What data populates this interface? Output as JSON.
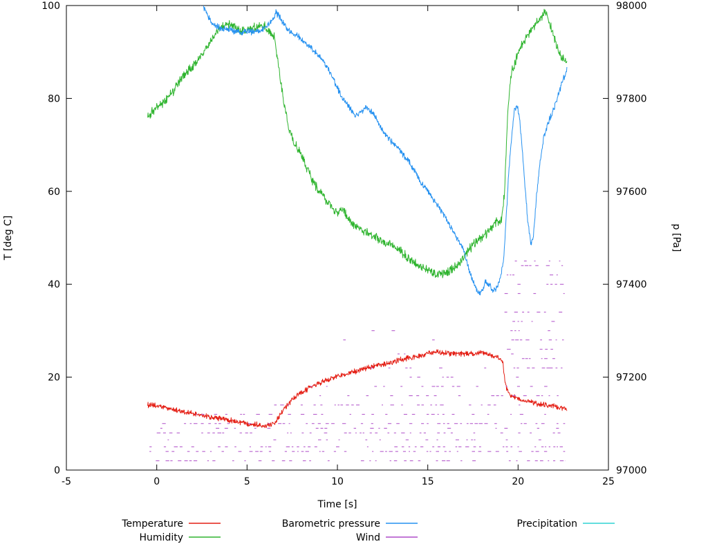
{
  "chart_data": {
    "type": "line",
    "title": "",
    "xlabel": "Time [s]",
    "ylabel_left": "T [deg C]",
    "ylabel_right": "p [Pa]",
    "xlim": [
      -5,
      25
    ],
    "ylim_left": [
      0,
      100
    ],
    "ylim_right": [
      97000,
      98000
    ],
    "x_ticks": [
      -5,
      0,
      5,
      10,
      15,
      20,
      25
    ],
    "y_ticks_left": [
      0,
      20,
      40,
      60,
      80,
      100
    ],
    "y_ticks_right": [
      97000,
      97200,
      97400,
      97600,
      97800,
      98000
    ],
    "grid": false,
    "legend_position": "below",
    "legend_rows": [
      [
        "Temperature",
        "Barometric pressure",
        "Precipitation"
      ],
      [
        "Humidity",
        "Wind"
      ]
    ],
    "series": [
      {
        "name": "Temperature",
        "color": "#e41e14",
        "axis": "left",
        "noise": 0.7,
        "points": [
          [
            -0.5,
            14
          ],
          [
            0,
            13.8
          ],
          [
            0.5,
            13.4
          ],
          [
            1,
            13
          ],
          [
            1.5,
            12.5
          ],
          [
            2,
            12.1
          ],
          [
            2.5,
            11.8
          ],
          [
            3,
            11.4
          ],
          [
            3.5,
            11.1
          ],
          [
            4,
            10.8
          ],
          [
            4.5,
            10.3
          ],
          [
            5,
            10.1
          ],
          [
            5.5,
            9.8
          ],
          [
            6,
            9.6
          ],
          [
            6.3,
            9.7
          ],
          [
            6.6,
            10.6
          ],
          [
            7,
            13
          ],
          [
            7.5,
            15.2
          ],
          [
            8,
            16.6
          ],
          [
            8.5,
            17.8
          ],
          [
            9,
            18.7
          ],
          [
            9.5,
            19.5
          ],
          [
            10,
            20.2
          ],
          [
            10.5,
            20.8
          ],
          [
            11,
            21.2
          ],
          [
            11.5,
            21.8
          ],
          [
            12,
            22.3
          ],
          [
            12.5,
            22.6
          ],
          [
            13,
            23.2
          ],
          [
            13.5,
            23.8
          ],
          [
            14,
            24.2
          ],
          [
            14.5,
            24.5
          ],
          [
            15,
            25
          ],
          [
            15.5,
            25.4
          ],
          [
            16,
            25.2
          ],
          [
            16.5,
            25
          ],
          [
            17,
            25.1
          ],
          [
            17.5,
            25
          ],
          [
            18,
            25.2
          ],
          [
            18.5,
            24.8
          ],
          [
            18.9,
            24.2
          ],
          [
            19.15,
            23.3
          ],
          [
            19.3,
            18.5
          ],
          [
            19.45,
            16.5
          ],
          [
            19.7,
            15.8
          ],
          [
            20,
            15.3
          ],
          [
            20.5,
            14.8
          ],
          [
            21,
            14.3
          ],
          [
            21.5,
            14
          ],
          [
            22,
            13.8
          ],
          [
            22.7,
            13.2
          ]
        ]
      },
      {
        "name": "Humidity",
        "color": "#2eb42e",
        "axis": "left",
        "noise": 1.2,
        "points": [
          [
            -0.5,
            76
          ],
          [
            0,
            78
          ],
          [
            0.5,
            79.5
          ],
          [
            1,
            82
          ],
          [
            1.5,
            85
          ],
          [
            2,
            87
          ],
          [
            2.3,
            88.5
          ],
          [
            2.6,
            90
          ],
          [
            3,
            92.5
          ],
          [
            3.3,
            94.5
          ],
          [
            3.6,
            95.5
          ],
          [
            4,
            96
          ],
          [
            4.3,
            95.5
          ],
          [
            4.6,
            94.5
          ],
          [
            5,
            94.5
          ],
          [
            5.3,
            95
          ],
          [
            5.6,
            95.5
          ],
          [
            6,
            95.5
          ],
          [
            6.2,
            94.5
          ],
          [
            6.5,
            93
          ],
          [
            6.7,
            88
          ],
          [
            7,
            80
          ],
          [
            7.3,
            73.5
          ],
          [
            7.6,
            70.5
          ],
          [
            8,
            68
          ],
          [
            8.3,
            65
          ],
          [
            8.6,
            62.5
          ],
          [
            9,
            60
          ],
          [
            9.5,
            57.5
          ],
          [
            10,
            55.5
          ],
          [
            10.3,
            56
          ],
          [
            10.6,
            54
          ],
          [
            11,
            52.5
          ],
          [
            11.5,
            51.5
          ],
          [
            12,
            50.5
          ],
          [
            12.5,
            49
          ],
          [
            13,
            48.5
          ],
          [
            13.5,
            47
          ],
          [
            14,
            45.5
          ],
          [
            14.5,
            44
          ],
          [
            15,
            43
          ],
          [
            15.5,
            42
          ],
          [
            16,
            42.5
          ],
          [
            16.5,
            43.5
          ],
          [
            17,
            46
          ],
          [
            17.5,
            48.5
          ],
          [
            18,
            50
          ],
          [
            18.5,
            52
          ],
          [
            18.8,
            53.5
          ],
          [
            19.1,
            54
          ],
          [
            19.25,
            60
          ],
          [
            19.4,
            75
          ],
          [
            19.55,
            83
          ],
          [
            19.7,
            86.5
          ],
          [
            19.85,
            88
          ],
          [
            20,
            90
          ],
          [
            20.3,
            92
          ],
          [
            20.6,
            94
          ],
          [
            21,
            96
          ],
          [
            21.3,
            97.5
          ],
          [
            21.5,
            98.5
          ],
          [
            21.7,
            97
          ],
          [
            22,
            93
          ],
          [
            22.2,
            90.5
          ],
          [
            22.4,
            89
          ],
          [
            22.7,
            87.5
          ]
        ]
      },
      {
        "name": "Barometric pressure",
        "color": "#2490f0",
        "axis": "right",
        "noise": 8,
        "points": [
          [
            2.4,
            98005
          ],
          [
            2.55,
            98000
          ],
          [
            2.7,
            97988
          ],
          [
            2.9,
            97972
          ],
          [
            3.1,
            97962
          ],
          [
            3.4,
            97953
          ],
          [
            3.7,
            97948
          ],
          [
            4,
            97950
          ],
          [
            4.3,
            97944
          ],
          [
            4.7,
            97941
          ],
          [
            5,
            97946
          ],
          [
            5.3,
            97943
          ],
          [
            5.7,
            97946
          ],
          [
            6,
            97951
          ],
          [
            6.2,
            97960
          ],
          [
            6.45,
            97972
          ],
          [
            6.6,
            97984
          ],
          [
            6.75,
            97978
          ],
          [
            7,
            97962
          ],
          [
            7.2,
            97951
          ],
          [
            7.5,
            97941
          ],
          [
            7.8,
            97936
          ],
          [
            8,
            97927
          ],
          [
            8.3,
            97916
          ],
          [
            8.6,
            97906
          ],
          [
            9,
            97891
          ],
          [
            9.3,
            97876
          ],
          [
            9.6,
            97857
          ],
          [
            10,
            97822
          ],
          [
            10.3,
            97801
          ],
          [
            10.6,
            97786
          ],
          [
            11,
            97761
          ],
          [
            11.3,
            97771
          ],
          [
            11.6,
            97781
          ],
          [
            12,
            97766
          ],
          [
            12.3,
            97746
          ],
          [
            12.6,
            97726
          ],
          [
            13,
            97706
          ],
          [
            13.3,
            97696
          ],
          [
            13.6,
            97681
          ],
          [
            14,
            97661
          ],
          [
            14.3,
            97641
          ],
          [
            14.6,
            97621
          ],
          [
            15,
            97601
          ],
          [
            15.3,
            97581
          ],
          [
            15.6,
            97566
          ],
          [
            16,
            97541
          ],
          [
            16.3,
            97521
          ],
          [
            16.6,
            97501
          ],
          [
            17,
            97471
          ],
          [
            17.3,
            97431
          ],
          [
            17.6,
            97396
          ],
          [
            17.8,
            97381
          ],
          [
            18,
            97386
          ],
          [
            18.2,
            97406
          ],
          [
            18.4,
            97401
          ],
          [
            18.6,
            97386
          ],
          [
            18.8,
            97391
          ],
          [
            19,
            97411
          ],
          [
            19.2,
            97451
          ],
          [
            19.35,
            97551
          ],
          [
            19.5,
            97651
          ],
          [
            19.65,
            97721
          ],
          [
            19.8,
            97776
          ],
          [
            19.95,
            97786
          ],
          [
            20.1,
            97751
          ],
          [
            20.25,
            97681
          ],
          [
            20.4,
            97601
          ],
          [
            20.55,
            97531
          ],
          [
            20.7,
            97486
          ],
          [
            20.85,
            97501
          ],
          [
            21,
            97581
          ],
          [
            21.2,
            97661
          ],
          [
            21.4,
            97711
          ],
          [
            21.6,
            97741
          ],
          [
            21.8,
            97761
          ],
          [
            22,
            97781
          ],
          [
            22.2,
            97806
          ],
          [
            22.4,
            97831
          ],
          [
            22.7,
            97861
          ]
        ]
      },
      {
        "name": "Wind",
        "color": "#ae4bc8",
        "axis": "left",
        "style": "dash-bands",
        "bands": [
          [
            2,
            -0.4,
            22.6,
            0.55
          ],
          [
            4,
            -0.4,
            22.6,
            0.6
          ],
          [
            5,
            -0.4,
            22.6,
            0.5
          ],
          [
            6.5,
            0.3,
            22.4,
            0.2
          ],
          [
            8,
            0,
            22.5,
            0.45
          ],
          [
            9,
            0.2,
            22.5,
            0.35
          ],
          [
            10,
            0.3,
            22.6,
            0.55
          ],
          [
            12,
            2,
            22.4,
            0.35
          ],
          [
            14,
            6.5,
            22.4,
            0.45
          ],
          [
            16,
            7.5,
            22.3,
            0.4
          ],
          [
            18,
            8.5,
            22.3,
            0.35
          ],
          [
            20,
            10.5,
            22.2,
            0.22
          ],
          [
            22,
            11.5,
            21.8,
            0.13
          ],
          [
            25,
            12.5,
            21.5,
            0.08
          ],
          [
            28,
            10,
            16.5,
            0.05
          ],
          [
            30,
            10.5,
            16,
            0.04
          ]
        ],
        "burst": {
          "x0": 19.2,
          "x1": 22.6,
          "levels": [
            20,
            22,
            24,
            26,
            28,
            30,
            32,
            34,
            36,
            38,
            40,
            42,
            44,
            45
          ],
          "density": 0.4
        }
      },
      {
        "name": "Precipitation",
        "color": "#2fd3d3",
        "axis": "left",
        "points": []
      }
    ]
  }
}
